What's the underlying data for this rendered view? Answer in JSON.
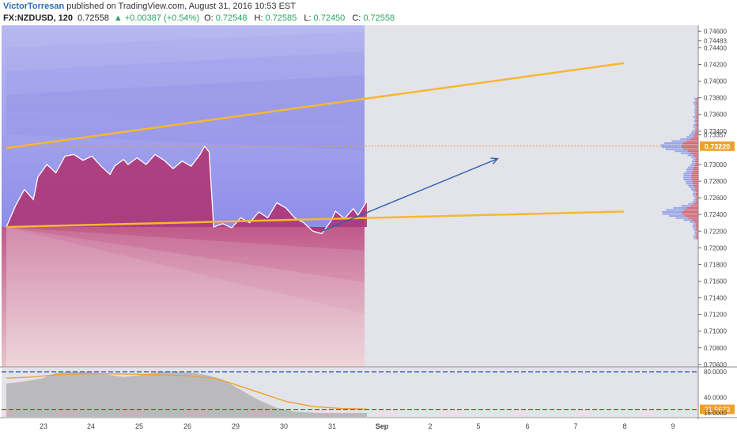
{
  "header": {
    "author": "VictorTorresan",
    "published_text": "published on TradingView.com, August 31, 2016 10:53 EST",
    "symbol": "FX:NZDUSD, 120",
    "last": "0.72558",
    "change": "+0.00387 (+0.54%)",
    "open_label": "O:",
    "open": "0.72548",
    "high_label": "H:",
    "high": "0.72585",
    "low_label": "L:",
    "low": "0.72450",
    "close_label": "C:",
    "close": "0.72558"
  },
  "colors": {
    "up": "#26a65b",
    "trendline": "#f5b82e",
    "arrow": "#2a5db0",
    "price_tag": "#f0a030",
    "rsi_upper": "#2a5db0",
    "rsi_lower": "#d62828",
    "rsi_line": "#f0a030"
  },
  "chart_data": {
    "type": "line",
    "symbol": "FX:NZDUSD",
    "interval": "120",
    "x_labels": [
      "23",
      "24",
      "25",
      "26",
      "29",
      "30",
      "31",
      "Sep",
      "2",
      "5",
      "6",
      "7",
      "8",
      "9"
    ],
    "y_ticks": [
      "0.74600",
      "0.74483",
      "0.74400",
      "0.74200",
      "0.74000",
      "0.73800",
      "0.73600",
      "0.73400",
      "0.73357",
      "0.73220",
      "0.73000",
      "0.72800",
      "0.72600",
      "0.72400",
      "0.72200",
      "0.72000",
      "0.71800",
      "0.71600",
      "0.71400",
      "0.71200",
      "0.71000",
      "0.70800",
      "0.70600"
    ],
    "price_marker": "0.73220",
    "ylim": [
      0.7057,
      0.7467
    ],
    "price": [
      [
        0,
        0.7225
      ],
      [
        2,
        0.725
      ],
      [
        4,
        0.727
      ],
      [
        6,
        0.7258
      ],
      [
        7,
        0.7285
      ],
      [
        9,
        0.73
      ],
      [
        11,
        0.729
      ],
      [
        13,
        0.731
      ],
      [
        15,
        0.7312
      ],
      [
        17,
        0.7305
      ],
      [
        19,
        0.731
      ],
      [
        21,
        0.7298
      ],
      [
        23,
        0.7288
      ],
      [
        24,
        0.7298
      ],
      [
        26,
        0.7306
      ],
      [
        27,
        0.73
      ],
      [
        29,
        0.7308
      ],
      [
        31,
        0.73
      ],
      [
        33,
        0.7312
      ],
      [
        35,
        0.7305
      ],
      [
        37,
        0.7295
      ],
      [
        39,
        0.7304
      ],
      [
        41,
        0.7298
      ],
      [
        43,
        0.7312
      ],
      [
        44,
        0.7322
      ],
      [
        45,
        0.7315
      ],
      [
        46,
        0.7225
      ],
      [
        48,
        0.7229
      ],
      [
        50,
        0.7224
      ],
      [
        52,
        0.7236
      ],
      [
        54,
        0.723
      ],
      [
        56,
        0.7243
      ],
      [
        58,
        0.7236
      ],
      [
        60,
        0.7254
      ],
      [
        62,
        0.7248
      ],
      [
        64,
        0.7236
      ],
      [
        66,
        0.723
      ],
      [
        68,
        0.722
      ],
      [
        70,
        0.7217
      ],
      [
        72,
        0.7232
      ],
      [
        73,
        0.7244
      ],
      [
        75,
        0.7235
      ],
      [
        77,
        0.7247
      ],
      [
        78,
        0.7239
      ],
      [
        80,
        0.7256
      ]
    ],
    "trendlines": [
      {
        "name": "upper",
        "from": [
          0,
          0.73197
        ],
        "to": [
          137,
          0.74216
        ]
      },
      {
        "name": "lower",
        "from": [
          0,
          0.7225
        ],
        "to": [
          137,
          0.72435
        ]
      }
    ],
    "projection_arrow": {
      "from": [
        70,
        0.722
      ],
      "to": [
        109,
        0.7307
      ]
    },
    "volume_profile_range": [
      0.721,
      0.738
    ],
    "rsi": {
      "ticks": [
        "80.0000",
        "40.0000",
        "21.5673",
        "16.0000"
      ],
      "upper_level": 80,
      "lower_level": 21.5673,
      "last": "21.5673",
      "ylim": [
        10,
        85
      ]
    }
  }
}
